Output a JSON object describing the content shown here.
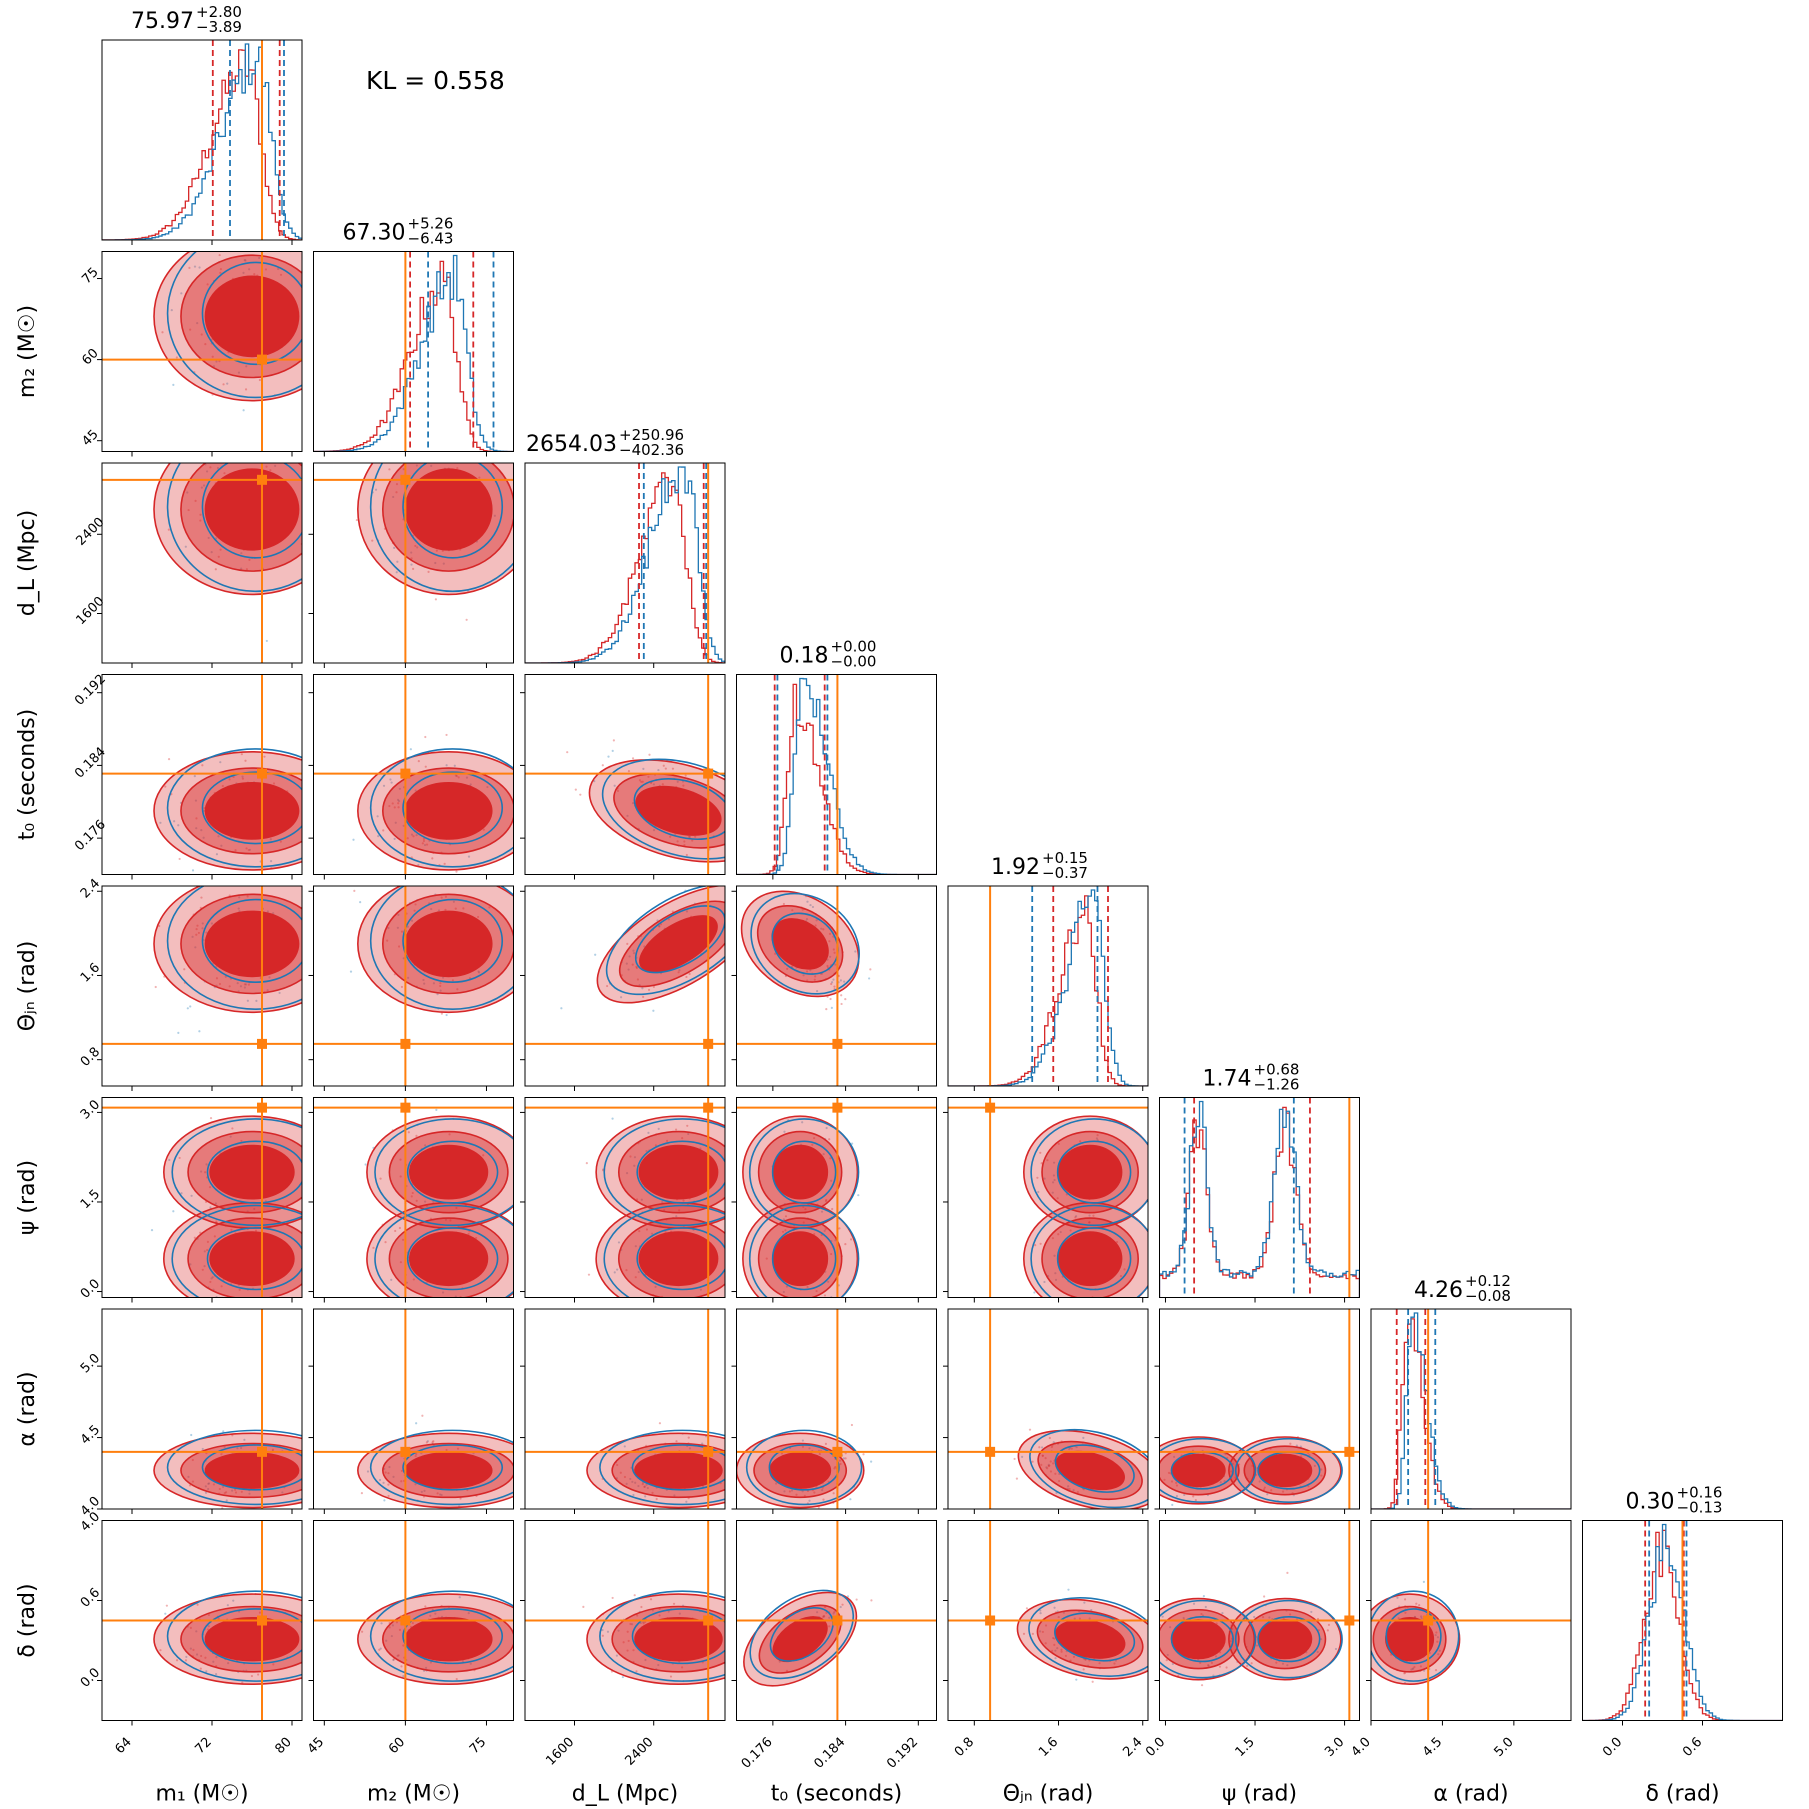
{
  "chart_data": {
    "type": "corner",
    "kl_text": "KL = 0.558",
    "colors": {
      "series_a": "#d62728",
      "series_b": "#1f77b4",
      "truth": "#ff7f0e"
    },
    "parameters": [
      {
        "key": "m1",
        "label": "m₁ (M☉)",
        "range": [
          61,
          81
        ],
        "ticks": [
          64,
          72,
          80
        ],
        "tick_labels": [
          "64",
          "72",
          "80"
        ],
        "truth": 77.0,
        "median": "75.97",
        "plus": "+2.80",
        "minus": "−3.89",
        "qa": [
          72.08,
          78.77
        ],
        "qb": [
          73.8,
          79.2
        ],
        "mean": 76.0,
        "sd": 3.5,
        "skew": -1
      },
      {
        "key": "m2",
        "label": "m₂ (M☉)",
        "range": [
          43,
          80
        ],
        "ticks": [
          45,
          60,
          75
        ],
        "tick_labels": [
          "45",
          "60",
          "75"
        ],
        "truth": 60.0,
        "median": "67.30",
        "plus": "+5.26",
        "minus": "−6.43",
        "qa": [
          60.87,
          72.56
        ],
        "qb": [
          64.2,
          76.3
        ],
        "mean": 68.0,
        "sd": 6.0,
        "skew": -0.4
      },
      {
        "key": "dL",
        "label": "d_L (Mpc)",
        "range": [
          1100,
          3120
        ],
        "ticks": [
          1600,
          2400
        ],
        "tick_labels": [
          "1600",
          "2400"
        ],
        "truth": 2950,
        "median": "2654.03",
        "plus": "+250.96",
        "minus": "−402.36",
        "qa": [
          2251.67,
          2904.99
        ],
        "qb": [
          2300,
          2930
        ],
        "mean": 2650,
        "sd": 330,
        "skew": -1
      },
      {
        "key": "t0",
        "label": "t₀ (seconds)",
        "range": [
          0.172,
          0.194
        ],
        "ticks": [
          0.176,
          0.184,
          0.192
        ],
        "tick_labels": [
          "0.176",
          "0.184",
          "0.192"
        ],
        "truth": 0.1831,
        "median": "0.18",
        "plus": "+0.00",
        "minus": "−0.00",
        "qa": [
          0.1762,
          0.1817
        ],
        "qb": [
          0.1765,
          0.182
        ],
        "mean": 0.179,
        "sd": 0.0025,
        "skew": 0.3
      },
      {
        "key": "theta_jn",
        "label": "Θⱼₙ (rad)",
        "range": [
          0.55,
          2.45
        ],
        "ticks": [
          0.8,
          1.6,
          2.4
        ],
        "tick_labels": [
          "0.8",
          "1.6",
          "2.4"
        ],
        "truth": 0.95,
        "median": "1.92",
        "plus": "+0.15",
        "minus": "−0.37",
        "qa": [
          1.55,
          2.07
        ],
        "qb": [
          1.35,
          1.97
        ],
        "mean": 1.9,
        "sd": 0.25,
        "skew": -1
      },
      {
        "key": "psi",
        "label": "ψ (rad)",
        "range": [
          -0.1,
          3.25
        ],
        "ticks": [
          0.0,
          1.5,
          3.0
        ],
        "tick_labels": [
          "0.0",
          "1.5",
          "3.0"
        ],
        "truth": 3.08,
        "median": "1.74",
        "plus": "+0.68",
        "minus": "−1.26",
        "qa": [
          0.48,
          2.42
        ],
        "qb": [
          0.32,
          2.15
        ],
        "mean": 1.6,
        "sd": 0.9,
        "skew": 0
      },
      {
        "key": "alpha",
        "label": "α (rad)",
        "range": [
          4.0,
          5.4
        ],
        "ticks": [
          4.0,
          4.5,
          5.0
        ],
        "tick_labels": [
          "4.0",
          "4.5",
          "5.0"
        ],
        "truth": 4.4,
        "median": "4.26",
        "plus": "+0.12",
        "minus": "−0.08",
        "qa": [
          4.18,
          4.38
        ],
        "qb": [
          4.26,
          4.45
        ],
        "mean": 4.27,
        "sd": 0.1,
        "skew": 1
      },
      {
        "key": "delta",
        "label": "δ (rad)",
        "range": [
          -0.3,
          1.2
        ],
        "ticks": [
          0.0,
          0.6
        ],
        "tick_labels": [
          "0.0",
          "0.6"
        ],
        "truth": 0.45,
        "median": "0.30",
        "plus": "+0.16",
        "minus": "−0.13",
        "qa": [
          0.17,
          0.46
        ],
        "qb": [
          0.2,
          0.48
        ],
        "mean": 0.31,
        "sd": 0.13,
        "skew": 0
      }
    ],
    "correlations": {
      "dL|theta_jn": 0.75,
      "t0|delta": 0.9,
      "theta_jn|t0": -0.6,
      "dL|t0": -0.4,
      "theta_jn|alpha": -0.5,
      "theta_jn|delta": -0.3
    },
    "bimodal": {
      "psi": [
        0.55,
        2.0
      ]
    },
    "y_tick_labels_extra": {
      "delta": {
        "value": 1.2,
        "label": "4.0"
      }
    }
  }
}
